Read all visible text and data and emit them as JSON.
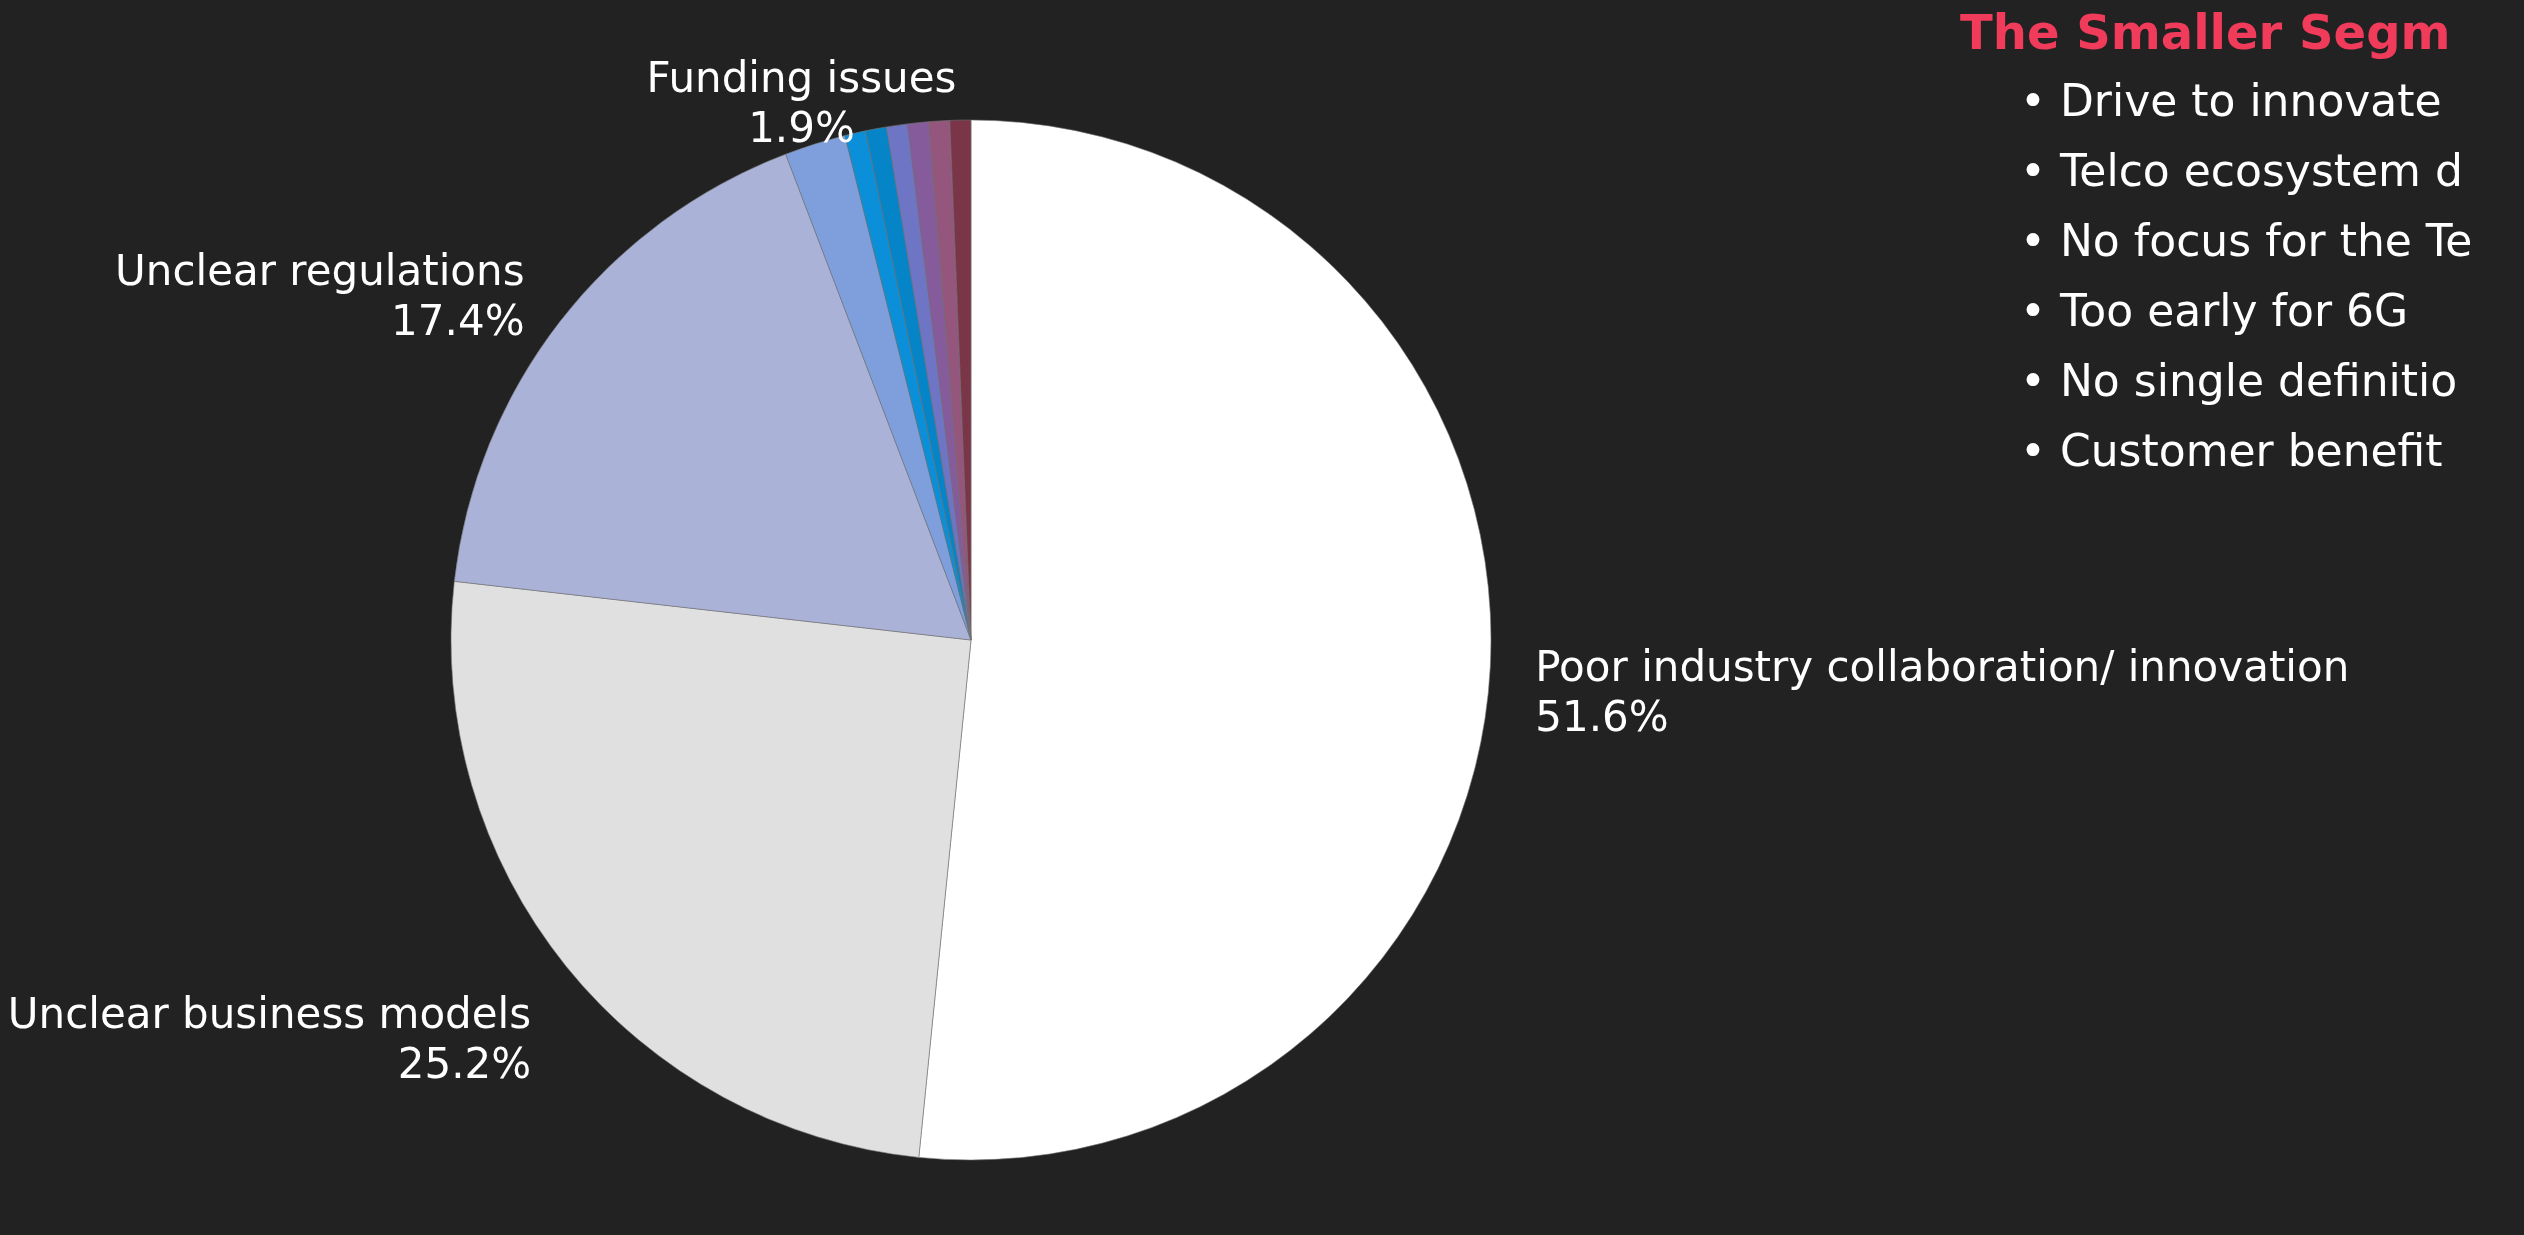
{
  "chart_data": {
    "type": "pie",
    "categories": [
      "Poor industry collaboration/ innovation",
      "Unclear business models",
      "Unclear regulations",
      "Funding issues",
      null,
      null,
      null,
      null,
      null,
      null
    ],
    "values": [
      51.6,
      25.2,
      17.4,
      1.9,
      0.65,
      0.65,
      0.65,
      0.65,
      0.65,
      0.65
    ],
    "value_labels": [
      "51.6%",
      "25.2%",
      "17.4%",
      "1.9%",
      null,
      null,
      null,
      null,
      null,
      null
    ],
    "colors": [
      "#ffffff",
      "#e0e0e0",
      "#aab2d8",
      "#7f9fdc",
      "#0a8fd8",
      "#0585c8",
      "#6e75c4",
      "#855b9c",
      "#94567c",
      "#7b3548"
    ],
    "annotations": [
      "The Smaller Segm",
      "• Drive to innovate",
      "• Telco ecosystem d",
      "• No focus for the Te",
      "• Too early for 6G",
      "• No single definitio",
      "• Customer benefit"
    ]
  }
}
